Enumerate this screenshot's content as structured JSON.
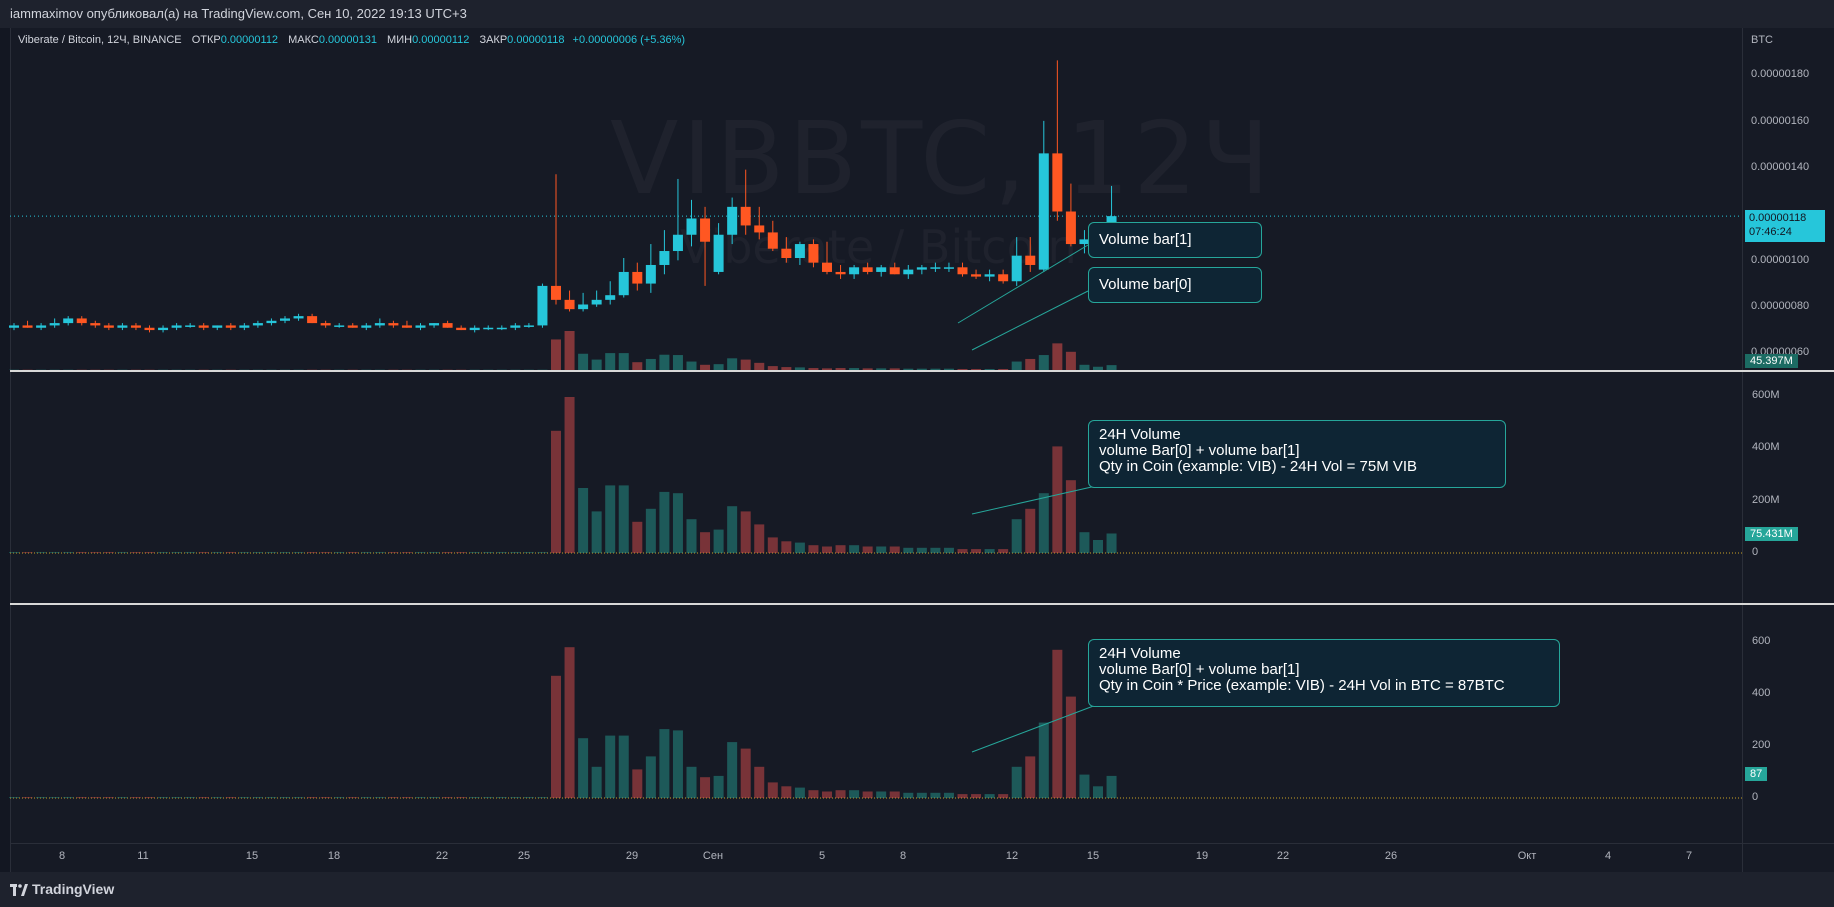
{
  "header": {
    "publisher_line": "iammaximov опубликовал(а) на TradingView.com, Сен 10, 2022 19:13 UTC+3"
  },
  "legend": {
    "symbol": "Viberate / Bitcoin, 12Ч, BINANCE",
    "open_label": "ОТКР",
    "open": "0.00000112",
    "high_label": "МАКС",
    "high": "0.00000131",
    "low_label": "МИН",
    "low": "0.00000112",
    "close_label": "ЗАКР",
    "close": "0.00000118",
    "change": "+0.00000006 (+5.36%)"
  },
  "watermark": {
    "ticker": "VIBBTC, 12Ч",
    "name": "Viberate / Bitcoin"
  },
  "axis": {
    "currency": "BTC",
    "price_ticks": [
      "0.00000180",
      "0.00000160",
      "0.00000140",
      "0.00000100",
      "0.00000080",
      "0.00000060"
    ],
    "price_tag": "0.00000118",
    "countdown": "07:46:24",
    "volume_tag": "45.397M",
    "vol24_ticks": [
      "600M",
      "400M",
      "200M",
      "0"
    ],
    "vol24_tag": "75.431M",
    "btc_ticks": [
      "600",
      "400",
      "200",
      "0"
    ],
    "btc_tag": "87",
    "x_ticks": [
      "8",
      "11",
      "15",
      "18",
      "22",
      "25",
      "29",
      "Сен",
      "5",
      "8",
      "12",
      "15",
      "19",
      "22",
      "26",
      "Окт",
      "4",
      "7"
    ]
  },
  "callouts": {
    "bar1": "Volume bar[1]",
    "bar0": "Volume bar[0]",
    "vol_coin": {
      "line1": "24H Volume",
      "line2": "volume Bar[0] + volume bar[1]",
      "line3": "Qty in Coin (example: VIB) - 24H Vol = 75M VIB"
    },
    "vol_btc": {
      "line1": "24H Volume",
      "line2": "volume Bar[0] + volume bar[1]",
      "line3": "Qty in Coin * Price (example: VIB) - 24H Vol in BTC = 87BTC"
    }
  },
  "footer": {
    "brand": "TradingView"
  },
  "colors": {
    "up": "#26c6da",
    "down": "#ff5722",
    "vol_up": "#26a69a",
    "vol_down": "#ef5350",
    "price_line": "#26c6da"
  },
  "chart_data": [
    {
      "type": "candlestick",
      "title": "Viberate / Bitcoin, 12Ч, BINANCE",
      "ylabel": "BTC",
      "ylim": [
        6e-07,
        1.9e-06
      ],
      "x_range": [
        "Aug 6",
        "Oct 8"
      ],
      "candles": [
        {
          "o": 7e-07,
          "h": 7.2e-07,
          "l": 6.9e-07,
          "c": 7.1e-07
        },
        {
          "o": 7.1e-07,
          "h": 7.3e-07,
          "l": 7e-07,
          "c": 7e-07
        },
        {
          "o": 7e-07,
          "h": 7.2e-07,
          "l": 6.9e-07,
          "c": 7.1e-07
        },
        {
          "o": 7.1e-07,
          "h": 7.4e-07,
          "l": 7e-07,
          "c": 7.2e-07
        },
        {
          "o": 7.2e-07,
          "h": 7.5e-07,
          "l": 7.1e-07,
          "c": 7.4e-07
        },
        {
          "o": 7.4e-07,
          "h": 7.5e-07,
          "l": 7.1e-07,
          "c": 7.2e-07
        },
        {
          "o": 7.2e-07,
          "h": 7.3e-07,
          "l": 7e-07,
          "c": 7.1e-07
        },
        {
          "o": 7.1e-07,
          "h": 7.2e-07,
          "l": 6.9e-07,
          "c": 7e-07
        },
        {
          "o": 7e-07,
          "h": 7.2e-07,
          "l": 6.9e-07,
          "c": 7.1e-07
        },
        {
          "o": 7.1e-07,
          "h": 7.2e-07,
          "l": 6.9e-07,
          "c": 7e-07
        },
        {
          "o": 7e-07,
          "h": 7.1e-07,
          "l": 6.8e-07,
          "c": 6.9e-07
        },
        {
          "o": 6.9e-07,
          "h": 7.1e-07,
          "l": 6.8e-07,
          "c": 7e-07
        },
        {
          "o": 7e-07,
          "h": 7.2e-07,
          "l": 6.9e-07,
          "c": 7.1e-07
        },
        {
          "o": 7.1e-07,
          "h": 7.2e-07,
          "l": 7e-07,
          "c": 7.1e-07
        },
        {
          "o": 7.1e-07,
          "h": 7.2e-07,
          "l": 6.9e-07,
          "c": 7e-07
        },
        {
          "o": 7e-07,
          "h": 7.1e-07,
          "l": 6.9e-07,
          "c": 7.1e-07
        },
        {
          "o": 7.1e-07,
          "h": 7.2e-07,
          "l": 6.9e-07,
          "c": 7e-07
        },
        {
          "o": 7e-07,
          "h": 7.2e-07,
          "l": 6.9e-07,
          "c": 7.1e-07
        },
        {
          "o": 7.1e-07,
          "h": 7.3e-07,
          "l": 7e-07,
          "c": 7.2e-07
        },
        {
          "o": 7.2e-07,
          "h": 7.4e-07,
          "l": 7.1e-07,
          "c": 7.3e-07
        },
        {
          "o": 7.3e-07,
          "h": 7.5e-07,
          "l": 7.2e-07,
          "c": 7.4e-07
        },
        {
          "o": 7.4e-07,
          "h": 7.6e-07,
          "l": 7.3e-07,
          "c": 7.5e-07
        },
        {
          "o": 7.5e-07,
          "h": 7.6e-07,
          "l": 7.2e-07,
          "c": 7.2e-07
        },
        {
          "o": 7.2e-07,
          "h": 7.3e-07,
          "l": 7e-07,
          "c": 7.1e-07
        },
        {
          "o": 7.1e-07,
          "h": 7.2e-07,
          "l": 7e-07,
          "c": 7.1e-07
        },
        {
          "o": 7.1e-07,
          "h": 7.2e-07,
          "l": 7e-07,
          "c": 7e-07
        },
        {
          "o": 7e-07,
          "h": 7.2e-07,
          "l": 6.9e-07,
          "c": 7.1e-07
        },
        {
          "o": 7.1e-07,
          "h": 7.4e-07,
          "l": 7e-07,
          "c": 7.2e-07
        },
        {
          "o": 7.2e-07,
          "h": 7.3e-07,
          "l": 7e-07,
          "c": 7.1e-07
        },
        {
          "o": 7.1e-07,
          "h": 7.3e-07,
          "l": 7e-07,
          "c": 7e-07
        },
        {
          "o": 7e-07,
          "h": 7.2e-07,
          "l": 6.9e-07,
          "c": 7.1e-07
        },
        {
          "o": 7.1e-07,
          "h": 7.2e-07,
          "l": 7e-07,
          "c": 7.2e-07
        },
        {
          "o": 7.2e-07,
          "h": 7.3e-07,
          "l": 7e-07,
          "c": 7e-07
        },
        {
          "o": 7e-07,
          "h": 7.1e-07,
          "l": 6.9e-07,
          "c": 6.9e-07
        },
        {
          "o": 6.9e-07,
          "h": 7.1e-07,
          "l": 6.8e-07,
          "c": 7e-07
        },
        {
          "o": 7e-07,
          "h": 7.1e-07,
          "l": 6.9e-07,
          "c": 7e-07
        },
        {
          "o": 7e-07,
          "h": 7.1e-07,
          "l": 6.9e-07,
          "c": 7e-07
        },
        {
          "o": 7e-07,
          "h": 7.2e-07,
          "l": 6.9e-07,
          "c": 7.1e-07
        },
        {
          "o": 7.1e-07,
          "h": 7.2e-07,
          "l": 7e-07,
          "c": 7.1e-07
        },
        {
          "o": 7.1e-07,
          "h": 8.9e-07,
          "l": 7e-07,
          "c": 8.8e-07
        },
        {
          "o": 8.8e-07,
          "h": 1.36e-06,
          "l": 8e-07,
          "c": 8.2e-07
        },
        {
          "o": 8.2e-07,
          "h": 8.6e-07,
          "l": 7.7e-07,
          "c": 7.8e-07
        },
        {
          "o": 7.8e-07,
          "h": 8.5e-07,
          "l": 7.7e-07,
          "c": 8e-07
        },
        {
          "o": 8e-07,
          "h": 8.6e-07,
          "l": 7.9e-07,
          "c": 8.2e-07
        },
        {
          "o": 8.2e-07,
          "h": 9e-07,
          "l": 8e-07,
          "c": 8.4e-07
        },
        {
          "o": 8.4e-07,
          "h": 1e-06,
          "l": 8.3e-07,
          "c": 9.4e-07
        },
        {
          "o": 9.4e-07,
          "h": 9.8e-07,
          "l": 8.6e-07,
          "c": 8.9e-07
        },
        {
          "o": 8.9e-07,
          "h": 1.06e-06,
          "l": 8.5e-07,
          "c": 9.7e-07
        },
        {
          "o": 9.7e-07,
          "h": 1.12e-06,
          "l": 9.3e-07,
          "c": 1.03e-06
        },
        {
          "o": 1.03e-06,
          "h": 1.34e-06,
          "l": 9.9e-07,
          "c": 1.1e-06
        },
        {
          "o": 1.1e-06,
          "h": 1.25e-06,
          "l": 1.05e-06,
          "c": 1.17e-06
        },
        {
          "o": 1.17e-06,
          "h": 1.22e-06,
          "l": 8.8e-07,
          "c": 1.07e-06
        },
        {
          "o": 9.4e-07,
          "h": 1.15e-06,
          "l": 9.3e-07,
          "c": 1.1e-06
        },
        {
          "o": 1.1e-06,
          "h": 1.26e-06,
          "l": 1.06e-06,
          "c": 1.22e-06
        },
        {
          "o": 1.22e-06,
          "h": 1.38e-06,
          "l": 1.1e-06,
          "c": 1.14e-06
        },
        {
          "o": 1.14e-06,
          "h": 1.22e-06,
          "l": 1.08e-06,
          "c": 1.11e-06
        },
        {
          "o": 1.11e-06,
          "h": 1.16e-06,
          "l": 1.03e-06,
          "c": 1.04e-06
        },
        {
          "o": 1.04e-06,
          "h": 1.09e-06,
          "l": 9.8e-07,
          "c": 1e-06
        },
        {
          "o": 1e-06,
          "h": 1.07e-06,
          "l": 9.7e-07,
          "c": 1.06e-06
        },
        {
          "o": 1.06e-06,
          "h": 1.08e-06,
          "l": 9.6e-07,
          "c": 9.8e-07
        },
        {
          "o": 9.8e-07,
          "h": 1.07e-06,
          "l": 9.3e-07,
          "c": 9.4e-07
        },
        {
          "o": 9.4e-07,
          "h": 9.7e-07,
          "l": 9.1e-07,
          "c": 9.3e-07
        },
        {
          "o": 9.3e-07,
          "h": 9.7e-07,
          "l": 9.1e-07,
          "c": 9.6e-07
        },
        {
          "o": 9.6e-07,
          "h": 9.8e-07,
          "l": 9.3e-07,
          "c": 9.4e-07
        },
        {
          "o": 9.4e-07,
          "h": 9.7e-07,
          "l": 9.2e-07,
          "c": 9.6e-07
        },
        {
          "o": 9.6e-07,
          "h": 9.8e-07,
          "l": 9.3e-07,
          "c": 9.3e-07
        },
        {
          "o": 9.3e-07,
          "h": 9.7e-07,
          "l": 9.1e-07,
          "c": 9.5e-07
        },
        {
          "o": 9.5e-07,
          "h": 9.7e-07,
          "l": 9.3e-07,
          "c": 9.6e-07
        },
        {
          "o": 9.6e-07,
          "h": 9.8e-07,
          "l": 9.4e-07,
          "c": 9.6e-07
        },
        {
          "o": 9.6e-07,
          "h": 9.8e-07,
          "l": 9.4e-07,
          "c": 9.6e-07
        },
        {
          "o": 9.6e-07,
          "h": 9.8e-07,
          "l": 9.2e-07,
          "c": 9.3e-07
        },
        {
          "o": 9.3e-07,
          "h": 9.5e-07,
          "l": 9.1e-07,
          "c": 9.2e-07
        },
        {
          "o": 9.2e-07,
          "h": 9.5e-07,
          "l": 9e-07,
          "c": 9.3e-07
        },
        {
          "o": 9.3e-07,
          "h": 9.5e-07,
          "l": 8.9e-07,
          "c": 9e-07
        },
        {
          "o": 9e-07,
          "h": 1.09e-06,
          "l": 8.8e-07,
          "c": 1.01e-06
        },
        {
          "o": 1.01e-06,
          "h": 1.09e-06,
          "l": 9.4e-07,
          "c": 9.7e-07
        },
        {
          "o": 9.5e-07,
          "h": 1.59e-06,
          "l": 9.4e-07,
          "c": 1.45e-06
        },
        {
          "o": 1.45e-06,
          "h": 1.85e-06,
          "l": 1.16e-06,
          "c": 1.2e-06
        },
        {
          "o": 1.2e-06,
          "h": 1.32e-06,
          "l": 1.05e-06,
          "c": 1.06e-06
        },
        {
          "o": 1.06e-06,
          "h": 1.12e-06,
          "l": 1.02e-06,
          "c": 1.08e-06
        },
        {
          "o": 1.08e-06,
          "h": 1.15e-06,
          "l": 1.02e-06,
          "c": 1.12e-06
        },
        {
          "o": 1.12e-06,
          "h": 1.31e-06,
          "l": 1.12e-06,
          "c": 1.18e-06
        }
      ]
    },
    {
      "type": "bar",
      "title": "Volume",
      "last_value": "45.397M",
      "pane": "overlay on price pane"
    },
    {
      "type": "bar",
      "title": "24H Volume (Qty in Coin)",
      "ylim": [
        0,
        600000000
      ],
      "last_value": "75.431M",
      "values_m": [
        3,
        3,
        3,
        3,
        3,
        3,
        3,
        3,
        3,
        3,
        3,
        3,
        3,
        3,
        3,
        3,
        3,
        3,
        3,
        3,
        3,
        3,
        3,
        3,
        3,
        3,
        3,
        3,
        3,
        3,
        3,
        3,
        3,
        3,
        3,
        3,
        3,
        3,
        3,
        3,
        470,
        600,
        250,
        160,
        260,
        260,
        120,
        170,
        235,
        230,
        130,
        80,
        90,
        180,
        160,
        110,
        60,
        45,
        40,
        30,
        25,
        30,
        30,
        25,
        25,
        25,
        20,
        20,
        20,
        20,
        15,
        15,
        15,
        15,
        130,
        170,
        230,
        410,
        280,
        80,
        50,
        75
      ]
    },
    {
      "type": "bar",
      "title": "24H Volume in BTC",
      "ylim": [
        0,
        700
      ],
      "last_value": "87",
      "values": [
        3,
        3,
        3,
        3,
        3,
        3,
        3,
        3,
        3,
        3,
        3,
        3,
        3,
        3,
        3,
        3,
        3,
        3,
        3,
        3,
        3,
        3,
        3,
        3,
        3,
        3,
        3,
        3,
        3,
        3,
        3,
        3,
        3,
        3,
        3,
        3,
        3,
        3,
        3,
        3,
        470,
        580,
        230,
        120,
        240,
        240,
        110,
        160,
        265,
        260,
        120,
        80,
        85,
        215,
        190,
        120,
        60,
        45,
        40,
        30,
        25,
        30,
        30,
        25,
        25,
        25,
        20,
        20,
        20,
        20,
        15,
        15,
        15,
        15,
        120,
        160,
        290,
        570,
        390,
        90,
        45,
        85
      ]
    }
  ]
}
